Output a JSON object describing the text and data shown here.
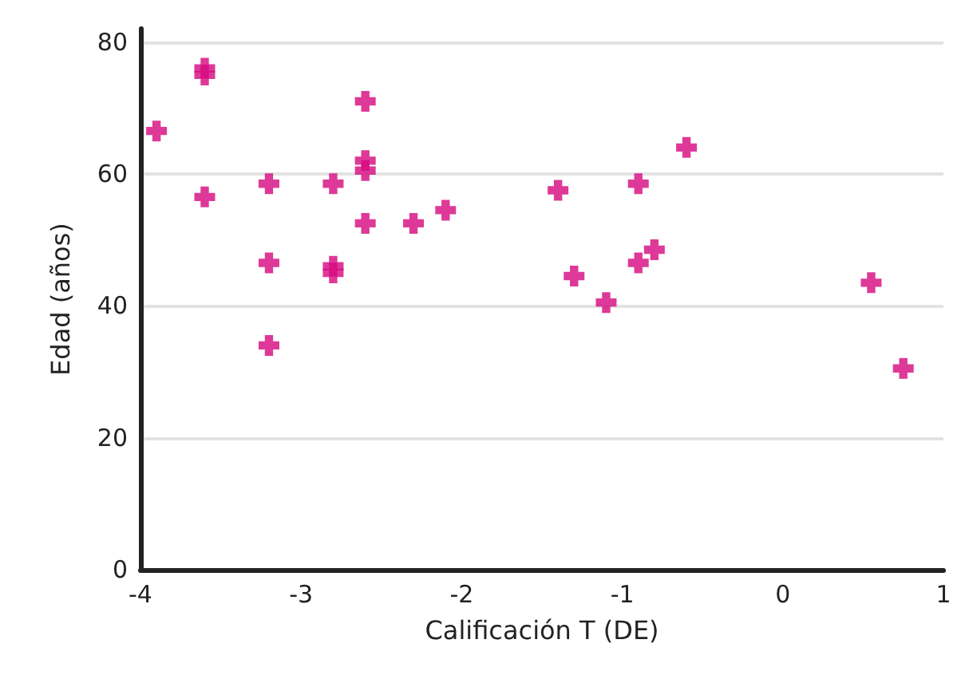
{
  "chart_data": {
    "type": "scatter",
    "xlabel": "Calificación T (DE)",
    "ylabel": "Edad (años)",
    "x": [
      -3.9,
      -3.6,
      -3.6,
      -3.6,
      -3.2,
      -3.2,
      -3.2,
      -2.8,
      -2.8,
      -2.8,
      -2.6,
      -2.6,
      -2.6,
      -2.6,
      -2.3,
      -2.1,
      -1.4,
      -1.3,
      -1.1,
      -0.9,
      -0.9,
      -0.8,
      -0.6,
      0.55,
      0.75
    ],
    "series": [
      {
        "color": "#d6077f",
        "values": [
          66.5,
          76,
          75,
          56.5,
          58.5,
          46.5,
          34,
          58.5,
          46,
          45,
          71,
          62,
          60.5,
          52.5,
          52.5,
          54.5,
          57.5,
          44.5,
          40.5,
          58.5,
          46.5,
          48.5,
          64,
          43.5,
          30.5
        ]
      }
    ],
    "xlim": [
      -4,
      1
    ],
    "xticks": [
      -4,
      -3,
      -2,
      -1,
      0,
      1
    ],
    "ylim": [
      0,
      82
    ],
    "yticks": [
      0,
      20,
      40,
      60,
      80
    ],
    "grid": "y",
    "marker": "cross"
  }
}
